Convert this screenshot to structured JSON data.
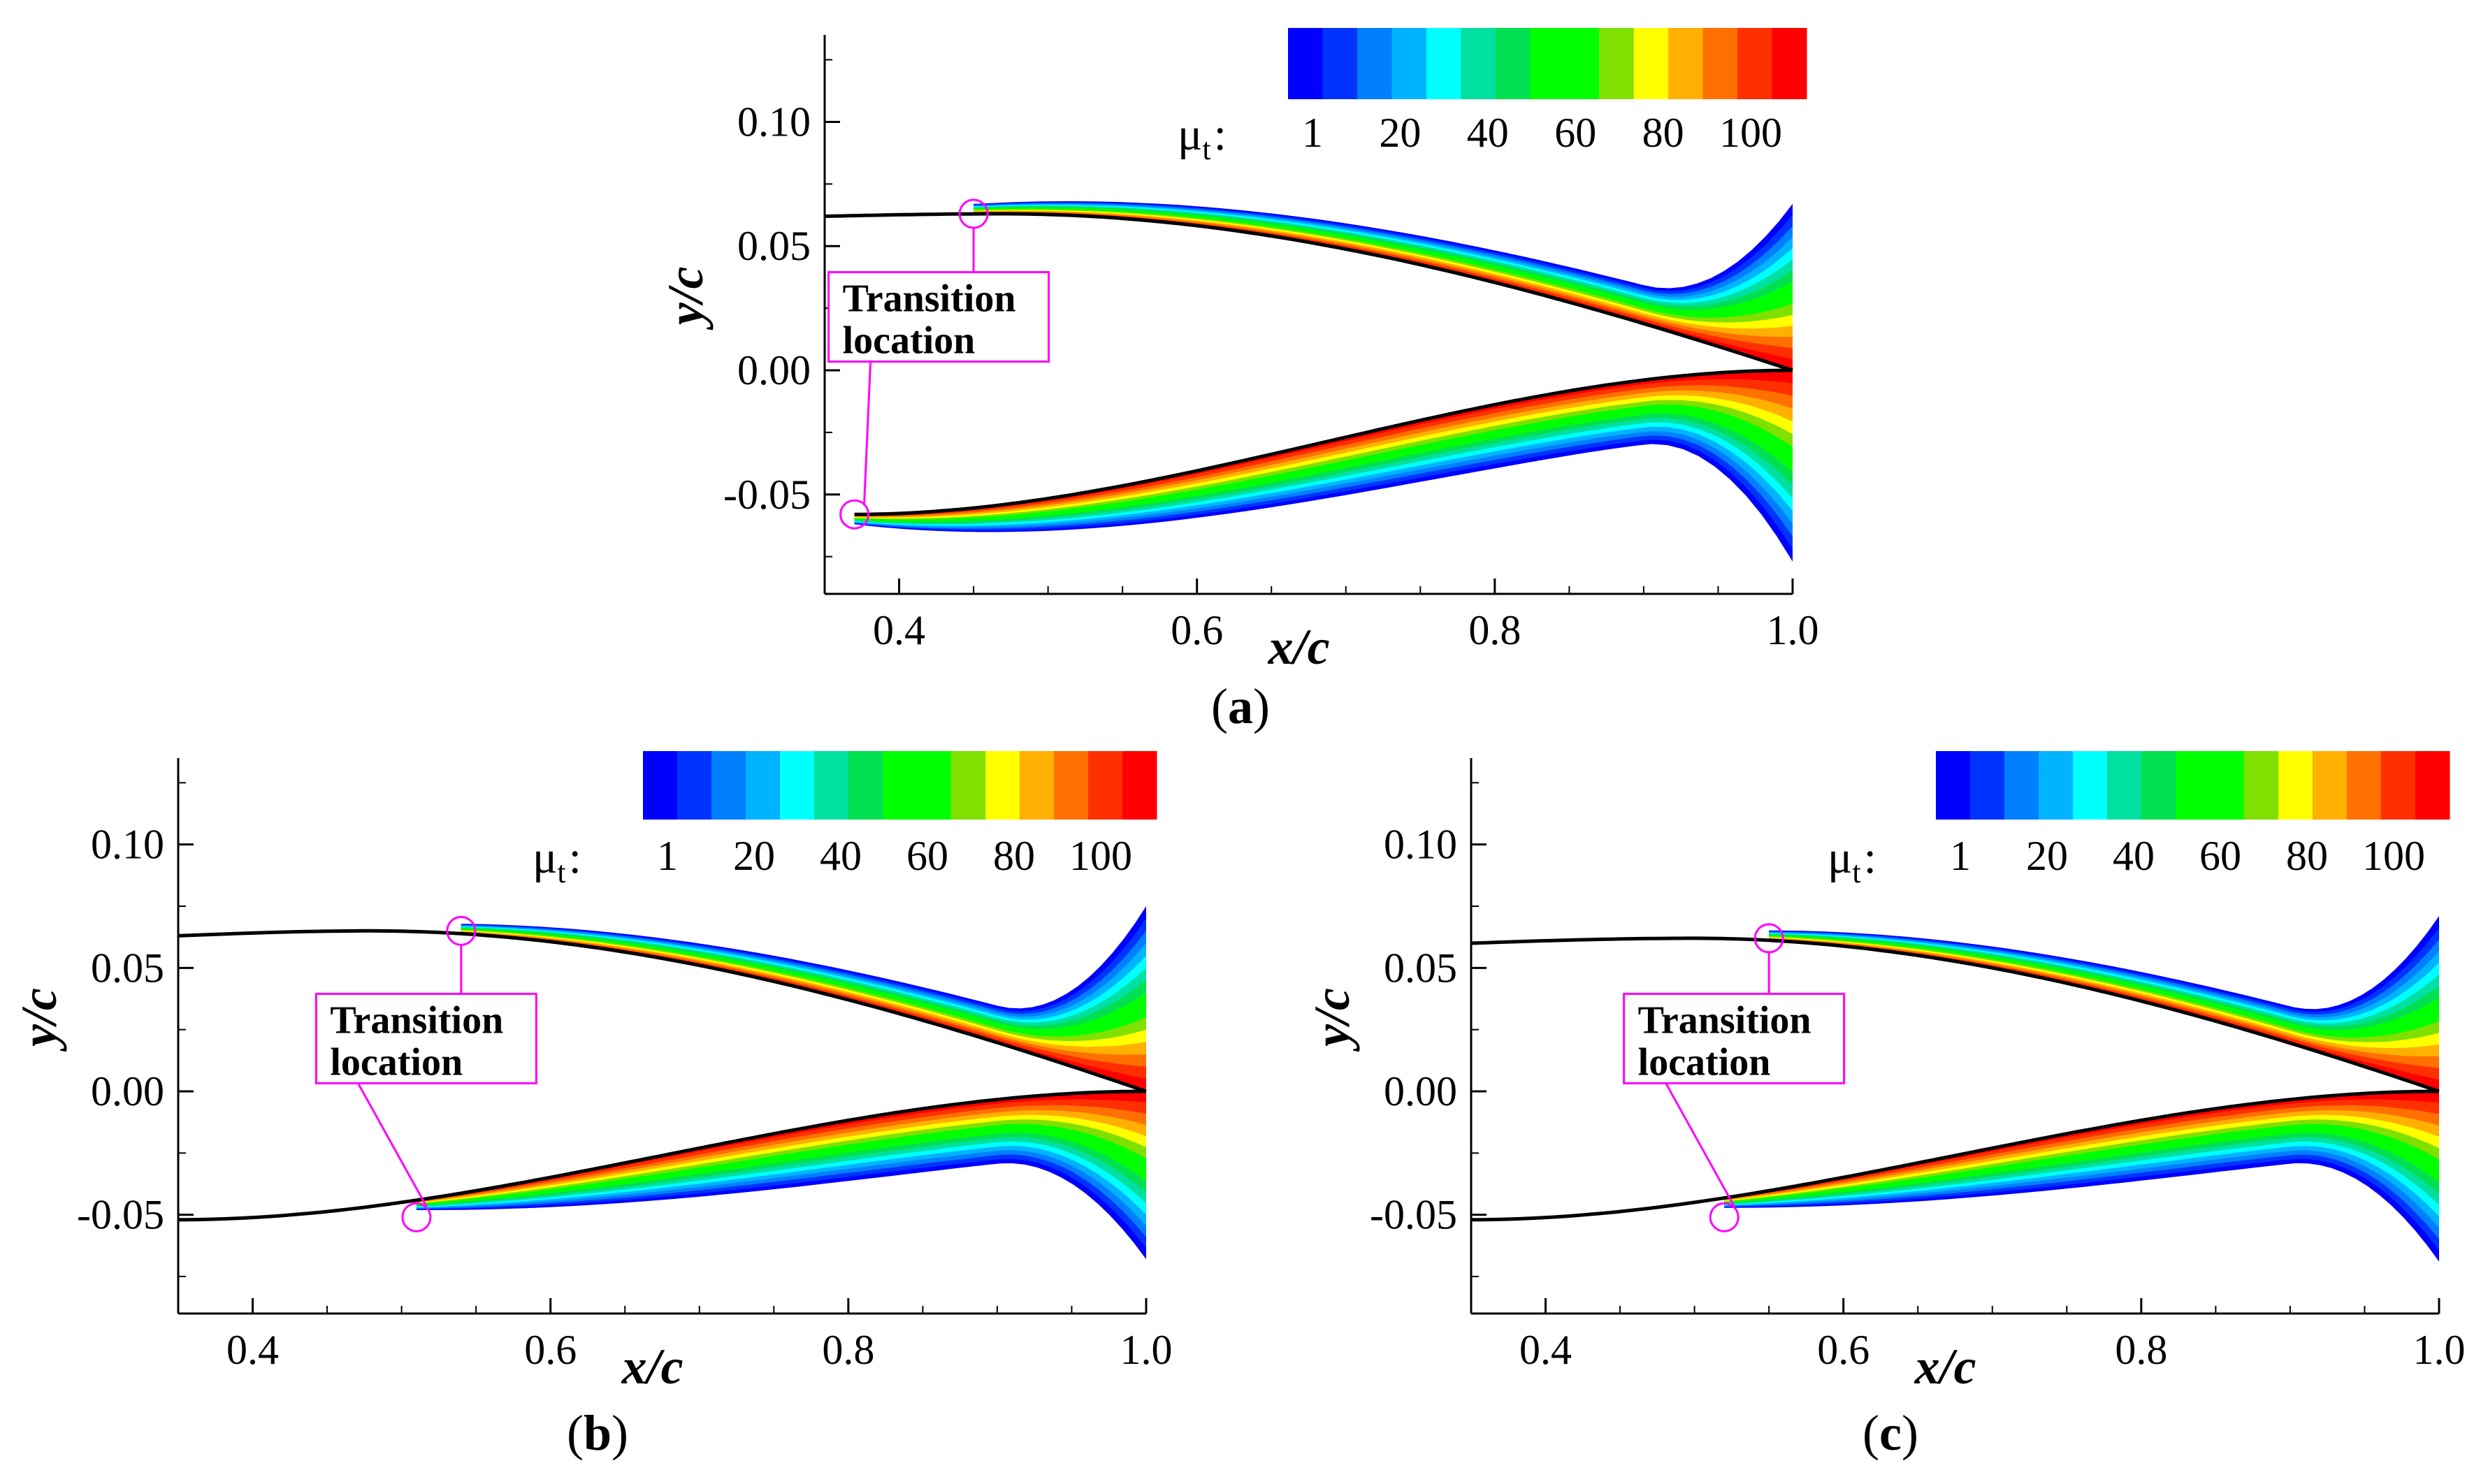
{
  "figure": {
    "subfigures": [
      {
        "id": "a",
        "caption_open": "(",
        "caption_letter": "a",
        "caption_close": ")"
      },
      {
        "id": "b",
        "caption_open": "(",
        "caption_letter": "b",
        "caption_close": ")"
      },
      {
        "id": "c",
        "caption_open": "(",
        "caption_letter": "c",
        "caption_close": ")"
      }
    ]
  },
  "colors": {
    "axis": "#000000",
    "annotation": "#ff00ff",
    "airfoil": "#000000",
    "contour_levels": [
      "#0000ff",
      "#0033ff",
      "#0080ff",
      "#00b3ff",
      "#00ffff",
      "#00e0a0",
      "#00e050",
      "#00ff00",
      "#00ff00",
      "#80e000",
      "#ffff00",
      "#ffb000",
      "#ff7000",
      "#ff3000",
      "#ff0000"
    ]
  },
  "chart_data": [
    {
      "type": "contour",
      "panel": "a",
      "xlabel": "x/c",
      "ylabel": "y/c",
      "xlim": [
        0.35,
        1.0
      ],
      "ylim": [
        -0.09,
        0.135
      ],
      "xticks": [
        "0.4",
        "0.6",
        "0.8",
        "1.0"
      ],
      "yticks": [
        "0.10",
        "0.05",
        "0.00",
        "-0.05"
      ],
      "colorbar": {
        "title": "μ",
        "title_sub": "t",
        "title_suffix": ":",
        "labels": [
          "1",
          "20",
          "40",
          "60",
          "80",
          "100"
        ]
      },
      "annotation": {
        "line1": "Transition",
        "line2": "location",
        "upper_point": [
          0.45,
          0.063
        ],
        "lower_point": [
          0.37,
          -0.058
        ]
      },
      "upper_surface": {
        "start": [
          0.35,
          0.062
        ],
        "peak": [
          0.47,
          0.063
        ],
        "end": [
          1.0,
          0.0
        ],
        "transition_x": 0.45
      },
      "lower_surface": {
        "start": [
          0.37,
          -0.058
        ],
        "end": [
          1.0,
          0.0
        ],
        "transition_x": 0.37
      },
      "wake_extent": {
        "upper_max_y": 0.069,
        "lower_min_y": -0.071
      }
    },
    {
      "type": "contour",
      "panel": "b",
      "xlabel": "x/c",
      "ylabel": "y/c",
      "xlim": [
        0.35,
        1.0
      ],
      "ylim": [
        -0.09,
        0.135
      ],
      "xticks": [
        "0.4",
        "0.6",
        "0.8",
        "1.0"
      ],
      "yticks": [
        "0.10",
        "0.05",
        "0.00",
        "-0.05"
      ],
      "colorbar": {
        "title": "μ",
        "title_sub": "t",
        "title_suffix": ":",
        "labels": [
          "1",
          "20",
          "40",
          "60",
          "80",
          "100"
        ]
      },
      "annotation": {
        "line1": "Transition",
        "line2": "location",
        "upper_point": [
          0.54,
          0.065
        ],
        "lower_point": [
          0.51,
          -0.051
        ]
      },
      "upper_surface": {
        "start": [
          0.35,
          0.063
        ],
        "peak": [
          0.48,
          0.065
        ],
        "end": [
          1.0,
          0.0
        ],
        "transition_x": 0.54
      },
      "lower_surface": {
        "start": [
          0.35,
          -0.052
        ],
        "end": [
          1.0,
          0.0
        ],
        "transition_x": 0.51
      },
      "wake_extent": {
        "upper_max_y": 0.077,
        "lower_min_y": -0.062
      }
    },
    {
      "type": "contour",
      "panel": "c",
      "xlabel": "x/c",
      "ylabel": "y/c",
      "xlim": [
        0.35,
        1.0
      ],
      "ylim": [
        -0.09,
        0.135
      ],
      "xticks": [
        "0.4",
        "0.6",
        "0.8",
        "1.0"
      ],
      "yticks": [
        "0.10",
        "0.05",
        "0.00",
        "-0.05"
      ],
      "colorbar": {
        "title": "μ",
        "title_sub": "t",
        "title_suffix": ":",
        "labels": [
          "1",
          "20",
          "40",
          "60",
          "80",
          "100"
        ]
      },
      "annotation": {
        "line1": "Transition",
        "line2": "location",
        "upper_point": [
          0.55,
          0.062
        ],
        "lower_point": [
          0.52,
          -0.051
        ]
      },
      "upper_surface": {
        "start": [
          0.35,
          0.06
        ],
        "peak": [
          0.5,
          0.062
        ],
        "end": [
          1.0,
          0.0
        ],
        "transition_x": 0.55
      },
      "lower_surface": {
        "start": [
          0.35,
          -0.052
        ],
        "end": [
          1.0,
          0.0
        ],
        "transition_x": 0.52
      },
      "wake_extent": {
        "upper_max_y": 0.073,
        "lower_min_y": -0.063
      }
    }
  ]
}
